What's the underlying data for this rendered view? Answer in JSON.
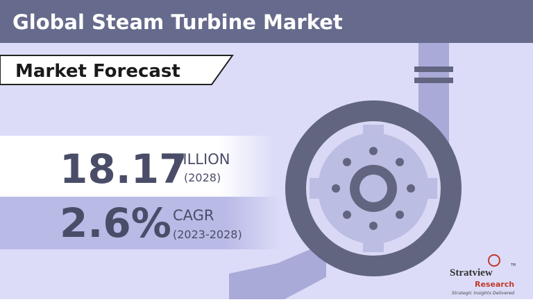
{
  "header": {
    "title": "Global Steam Turbine Market",
    "subtitle": "Market Forecast"
  },
  "stats": [
    {
      "value": "18.17",
      "unit": "BILLION",
      "period": "(2028)"
    },
    {
      "value": "2.6%",
      "unit": "CAGR",
      "period": "(2023-2028)"
    }
  ],
  "logo": {
    "name": "Stratview",
    "trademark": "TM",
    "sub": "Research",
    "tagline": "Strategic Insights Delivered"
  }
}
